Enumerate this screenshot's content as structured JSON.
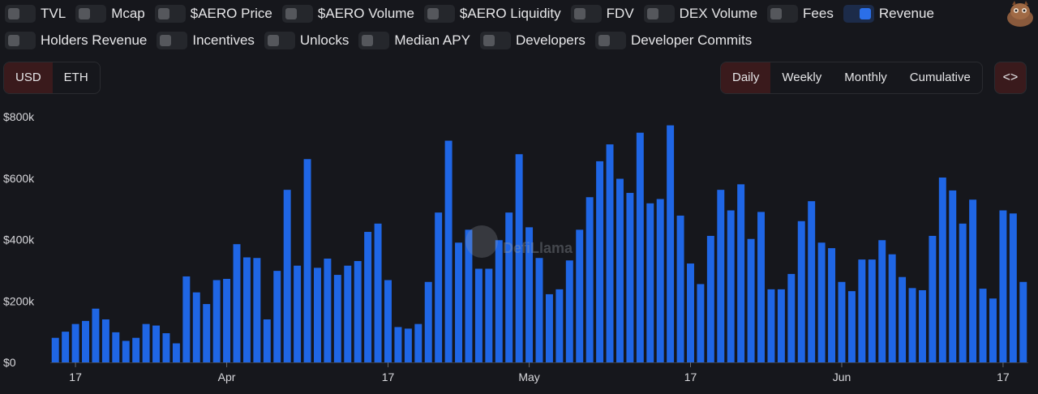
{
  "toggles_row1": [
    {
      "label": "TVL",
      "on": false
    },
    {
      "label": "Mcap",
      "on": false
    },
    {
      "label": "$AERO Price",
      "on": false
    },
    {
      "label": "$AERO Volume",
      "on": false
    },
    {
      "label": "$AERO Liquidity",
      "on": false
    },
    {
      "label": "FDV",
      "on": false
    },
    {
      "label": "DEX Volume",
      "on": false
    },
    {
      "label": "Fees",
      "on": false
    },
    {
      "label": "Revenue",
      "on": true
    }
  ],
  "toggles_row2": [
    {
      "label": "Holders Revenue",
      "on": false
    },
    {
      "label": "Incentives",
      "on": false
    },
    {
      "label": "Unlocks",
      "on": false
    },
    {
      "label": "Median APY",
      "on": false
    },
    {
      "label": "Developers",
      "on": false
    },
    {
      "label": "Developer Commits",
      "on": false
    }
  ],
  "currency": {
    "options": [
      "USD",
      "ETH"
    ],
    "selected": "USD"
  },
  "period": {
    "options": [
      "Daily",
      "Weekly",
      "Monthly",
      "Cumulative"
    ],
    "selected": "Daily"
  },
  "embed_label": "<>",
  "watermark": "DefiLlama",
  "colors": {
    "bar": "#1f66e5",
    "accent": "#3a1a1c"
  },
  "chart_data": {
    "type": "bar",
    "ylabel": "",
    "xlabel": "",
    "ylim": [
      0,
      800000
    ],
    "yticks": [
      {
        "value": 0,
        "label": "$0"
      },
      {
        "value": 200000,
        "label": "$200k"
      },
      {
        "value": 400000,
        "label": "$400k"
      },
      {
        "value": 600000,
        "label": "$600k"
      },
      {
        "value": 800000,
        "label": "$800k"
      }
    ],
    "xticks": [
      {
        "index": 2,
        "label": "17"
      },
      {
        "index": 17,
        "label": "Apr"
      },
      {
        "index": 33,
        "label": "17"
      },
      {
        "index": 47,
        "label": "May"
      },
      {
        "index": 63,
        "label": "17"
      },
      {
        "index": 78,
        "label": "Jun"
      },
      {
        "index": 94,
        "label": "17"
      }
    ],
    "series": [
      {
        "values": [
          80000,
          100000,
          125000,
          135000,
          175000,
          140000,
          98000,
          70000,
          80000,
          125000,
          120000,
          95000,
          62000,
          280000,
          228000,
          190000,
          268000,
          272000,
          385000,
          342000,
          340000,
          140000,
          298000,
          562000,
          315000,
          662000,
          308000,
          338000,
          285000,
          315000,
          330000,
          425000,
          452000,
          268000,
          115000,
          110000,
          125000,
          262000,
          488000,
          722000,
          390000,
          432000,
          305000,
          305000,
          398000,
          488000,
          678000,
          440000,
          340000,
          222000,
          238000,
          332000,
          432000,
          538000,
          655000,
          710000,
          598000,
          552000,
          748000,
          518000,
          532000,
          772000,
          478000,
          322000,
          255000,
          412000,
          562000,
          495000,
          580000,
          402000,
          490000,
          238000,
          238000,
          288000,
          460000,
          525000,
          390000,
          372000,
          262000,
          232000,
          335000,
          335000,
          398000,
          352000,
          278000,
          242000,
          235000,
          412000,
          602000,
          560000,
          452000,
          530000,
          240000,
          208000,
          495000,
          485000,
          262000
        ]
      }
    ]
  }
}
